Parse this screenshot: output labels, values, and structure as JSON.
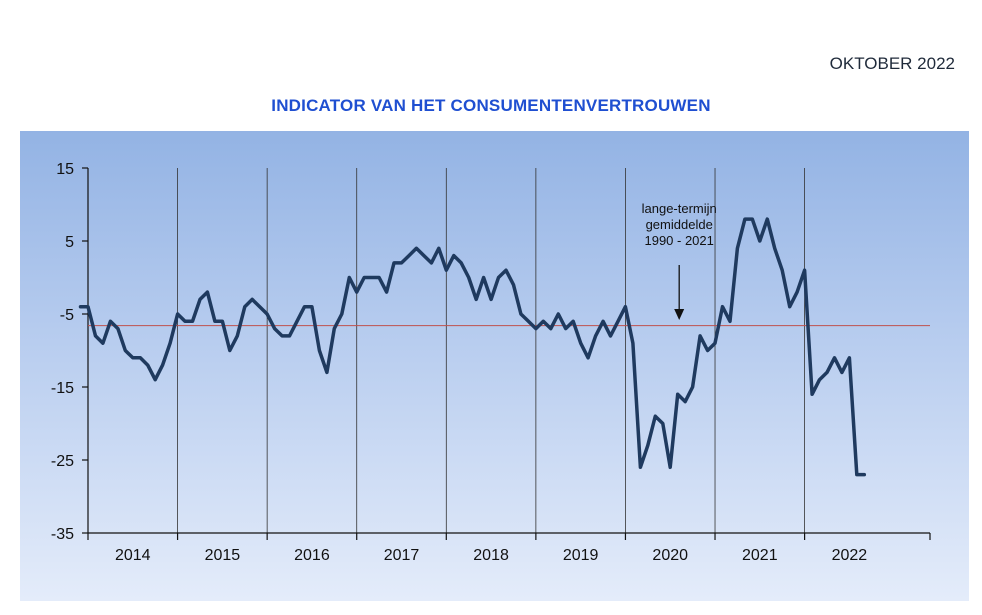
{
  "header": {
    "date_label": "OKTOBER 2022",
    "title": "INDICATOR VAN HET CONSUMENTENVERTROUWEN"
  },
  "chart_data": {
    "type": "line",
    "title": "INDICATOR VAN HET CONSUMENTENVERTROUWEN",
    "xlabel": "",
    "ylabel": "",
    "ylim": [
      -35,
      15
    ],
    "yticks": [
      15,
      5,
      -5,
      -15,
      -25,
      -35
    ],
    "xlim": [
      2013.5,
      2022.9
    ],
    "year_labels": [
      "2014",
      "2015",
      "2016",
      "2017",
      "2018",
      "2019",
      "2020",
      "2021",
      "2022"
    ],
    "year_boundaries": [
      2014.5,
      2015.5,
      2016.5,
      2017.5,
      2018.5,
      2019.5,
      2020.5,
      2021.5
    ],
    "grid": "vertical lines at year boundaries",
    "long_term_average": {
      "value": -6.6,
      "label_lines": [
        "lange-termijn",
        "gemiddelde",
        "1990 - 2021"
      ],
      "color": "#c0504d"
    },
    "series": [
      {
        "color": "#1f3a5f",
        "start": "2013-06",
        "values": [
          -4,
          -4,
          -8,
          -9,
          -6,
          -7,
          -10,
          -11,
          -11,
          -12,
          -14,
          -12,
          -9,
          -5,
          -6,
          -6,
          -3,
          -2,
          -6,
          -6,
          -10,
          -8,
          -4,
          -3,
          -4,
          -5,
          -7,
          -8,
          -8,
          -6,
          -4,
          -4,
          -10,
          -13,
          -7,
          -5,
          0,
          -2,
          0,
          0,
          0,
          -2,
          2,
          2,
          3,
          4,
          3,
          2,
          4,
          1,
          3,
          2,
          0,
          -3,
          0,
          -3,
          0,
          1,
          -1,
          -5,
          -6,
          -7,
          -6,
          -7,
          -5,
          -7,
          -6,
          -9,
          -11,
          -8,
          -6,
          -8,
          -6,
          -4,
          -9,
          -26,
          -23,
          -19,
          -20,
          -26,
          -16,
          -17,
          -15,
          -8,
          -10,
          -9,
          -4,
          -6,
          4,
          8,
          8,
          5,
          8,
          4,
          1,
          -4,
          -2,
          1,
          -16,
          -14,
          -13,
          -11,
          -13,
          -11,
          -27,
          -27
        ]
      }
    ]
  }
}
